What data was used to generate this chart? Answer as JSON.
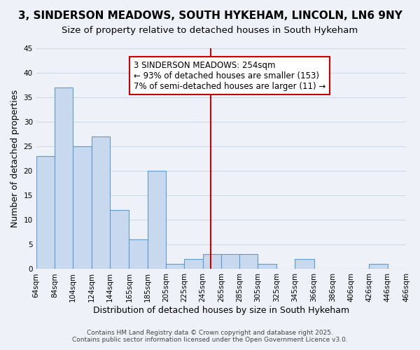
{
  "title": "3, SINDERSON MEADOWS, SOUTH HYKEHAM, LINCOLN, LN6 9NY",
  "subtitle": "Size of property relative to detached houses in South Hykeham",
  "xlabel": "Distribution of detached houses by size in South Hykeham",
  "ylabel": "Number of detached properties",
  "bin_labels": [
    "64sqm",
    "84sqm",
    "104sqm",
    "124sqm",
    "144sqm",
    "165sqm",
    "185sqm",
    "205sqm",
    "225sqm",
    "245sqm",
    "265sqm",
    "285sqm",
    "305sqm",
    "325sqm",
    "345sqm",
    "366sqm",
    "386sqm",
    "406sqm",
    "426sqm",
    "446sqm",
    "466sqm"
  ],
  "bin_edges": [
    64,
    84,
    104,
    124,
    144,
    165,
    185,
    205,
    225,
    245,
    265,
    285,
    305,
    325,
    345,
    366,
    386,
    406,
    426,
    446,
    466
  ],
  "counts": [
    23,
    37,
    25,
    27,
    12,
    6,
    20,
    1,
    2,
    3,
    3,
    3,
    1,
    0,
    2,
    0,
    0,
    0,
    1,
    0
  ],
  "bar_facecolor": "#c8d9ee",
  "bar_edgecolor": "#5b9bd5",
  "grid_color": "#d0d8e8",
  "bg_color": "#eef2f8",
  "vline_x": 254,
  "vline_color": "#cc0000",
  "annotation_title": "3 SINDERSON MEADOWS: 254sqm",
  "annotation_line1": "← 93% of detached houses are smaller (153)",
  "annotation_line2": "7% of semi-detached houses are larger (11) →",
  "annotation_box_edgecolor": "#cc0000",
  "footer1": "Contains HM Land Registry data © Crown copyright and database right 2025.",
  "footer2": "Contains public sector information licensed under the Open Government Licence v3.0.",
  "ylim": [
    0,
    45
  ],
  "yticks": [
    0,
    5,
    10,
    15,
    20,
    25,
    30,
    35,
    40,
    45
  ],
  "title_fontsize": 11,
  "subtitle_fontsize": 9.5,
  "axis_label_fontsize": 9,
  "tick_fontsize": 7.5,
  "annotation_fontsize": 8.5,
  "footer_fontsize": 6.5
}
